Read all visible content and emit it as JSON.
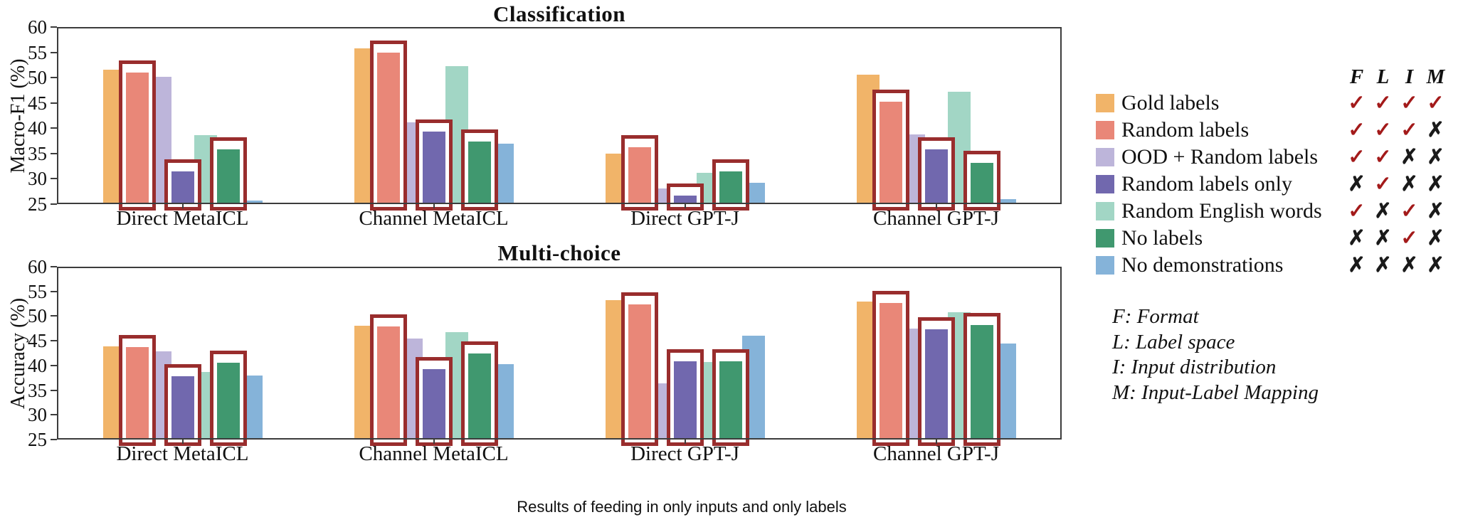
{
  "caption": "Results of feeding in only inputs and only labels",
  "footnotes": [
    "F: Format",
    "L: Label space",
    "I: Input distribution",
    "M: Input-Label Mapping"
  ],
  "legend": {
    "header": [
      "F",
      "L",
      "I",
      "M"
    ],
    "check_glyph": "✓",
    "cross_glyph": "✗",
    "check_color": "#a31a1a",
    "cross_color": "#1a1a1a",
    "items": [
      {
        "label": "Gold labels",
        "color": "#f1b469",
        "marks": [
          true,
          true,
          true,
          true
        ]
      },
      {
        "label": "Random labels",
        "color": "#e98778",
        "marks": [
          true,
          true,
          true,
          false
        ]
      },
      {
        "label": "OOD + Random labels",
        "color": "#bdb5da",
        "marks": [
          true,
          true,
          false,
          false
        ]
      },
      {
        "label": "Random labels only",
        "color": "#7168ae",
        "marks": [
          false,
          true,
          false,
          false
        ]
      },
      {
        "label": "Random English words",
        "color": "#a2d6c5",
        "marks": [
          true,
          false,
          true,
          false
        ]
      },
      {
        "label": "No labels",
        "color": "#40986f",
        "marks": [
          false,
          false,
          true,
          false
        ]
      },
      {
        "label": "No demonstrations",
        "color": "#85b3d9",
        "marks": [
          false,
          false,
          false,
          false
        ]
      }
    ]
  },
  "style": {
    "series_colors": [
      "#f1b469",
      "#e98778",
      "#bdb5da",
      "#7168ae",
      "#a2d6c5",
      "#40986f",
      "#85b3d9"
    ],
    "highlight_color": "#992d2d",
    "axis_color": "#3c3c3c"
  },
  "chart_data": [
    {
      "type": "bar",
      "title": "Classification",
      "ylabel": "Macro-F1 (%)",
      "ylim": [
        25,
        60
      ],
      "yticks": [
        25,
        30,
        35,
        40,
        45,
        50,
        55,
        60
      ],
      "grid": false,
      "categories": [
        "Direct MetaICL",
        "Channel MetaICL",
        "Direct GPT-J",
        "Channel GPT-J"
      ],
      "series": [
        {
          "name": "Gold labels",
          "values": [
            51.6,
            55.8,
            35.0,
            50.6
          ]
        },
        {
          "name": "Random labels",
          "values": [
            51.0,
            54.9,
            36.3,
            45.2
          ]
        },
        {
          "name": "OOD + Random labels",
          "values": [
            50.2,
            41.1,
            28.1,
            38.8
          ]
        },
        {
          "name": "Random labels only",
          "values": [
            31.5,
            39.3,
            26.7,
            35.8
          ]
        },
        {
          "name": "Random English words",
          "values": [
            38.7,
            52.3,
            31.2,
            47.2
          ]
        },
        {
          "name": "No labels",
          "values": [
            35.8,
            37.3,
            31.4,
            33.2
          ]
        },
        {
          "name": "No demonstrations",
          "values": [
            25.7,
            37.0,
            29.2,
            26.0
          ]
        }
      ],
      "highlighted_series": [
        1,
        3,
        5
      ]
    },
    {
      "type": "bar",
      "title": "Multi-choice",
      "ylabel": "Accuracy (%)",
      "ylim": [
        25,
        60
      ],
      "yticks": [
        25,
        30,
        35,
        40,
        45,
        50,
        55,
        60
      ],
      "grid": false,
      "categories": [
        "Direct MetaICL",
        "Channel MetaICL",
        "Direct GPT-J",
        "Channel GPT-J"
      ],
      "series": [
        {
          "name": "Gold labels",
          "values": [
            43.9,
            48.0,
            53.2,
            52.9
          ]
        },
        {
          "name": "Random labels",
          "values": [
            43.7,
            47.9,
            52.4,
            52.6
          ]
        },
        {
          "name": "OOD + Random labels",
          "values": [
            42.8,
            45.4,
            36.4,
            47.5
          ]
        },
        {
          "name": "Random labels only",
          "values": [
            37.8,
            39.2,
            40.9,
            47.3
          ]
        },
        {
          "name": "Random English words",
          "values": [
            38.7,
            46.8,
            40.7,
            50.8
          ]
        },
        {
          "name": "No labels",
          "values": [
            40.5,
            42.5,
            40.8,
            48.2
          ]
        },
        {
          "name": "No demonstrations",
          "values": [
            37.9,
            40.3,
            46.0,
            44.5
          ]
        }
      ],
      "highlighted_series": [
        1,
        3,
        5
      ]
    }
  ]
}
